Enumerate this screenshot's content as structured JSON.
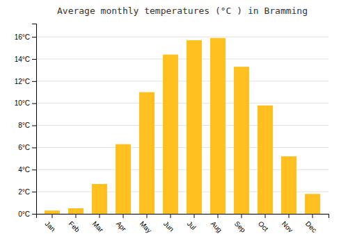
{
  "chart_data": {
    "type": "bar",
    "title": "Average monthly temperatures (°C ) in Bramming",
    "categories": [
      "Jan",
      "Feb",
      "Mar",
      "Apr",
      "May",
      "Jun",
      "Jul",
      "Aug",
      "Sep",
      "Oct",
      "Nov",
      "Dec"
    ],
    "values": [
      0.3,
      0.5,
      2.7,
      6.3,
      11.0,
      14.4,
      15.7,
      15.9,
      13.3,
      9.8,
      5.2,
      1.8
    ],
    "color": "#FFC020",
    "ylim": [
      0,
      17.2
    ],
    "yticks": [
      {
        "value": 0,
        "label": "0°C"
      },
      {
        "value": 2,
        "label": "2°C"
      },
      {
        "value": 4,
        "label": "4°C"
      },
      {
        "value": 6,
        "label": "6°C"
      },
      {
        "value": 8,
        "label": "8°C"
      },
      {
        "value": 10,
        "label": "10°C"
      },
      {
        "value": 12,
        "label": "12°C"
      },
      {
        "value": 14,
        "label": "14°C"
      },
      {
        "value": 16,
        "label": "16°C"
      }
    ],
    "grid": true
  }
}
